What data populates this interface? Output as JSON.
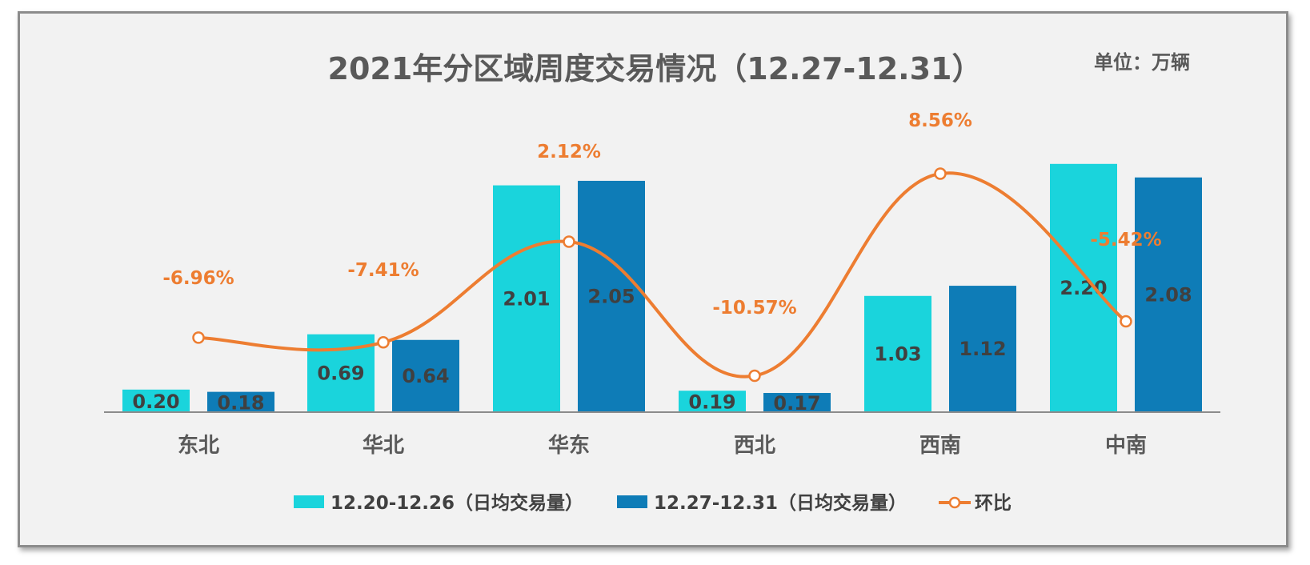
{
  "chart_data": {
    "type": "bar",
    "title": "2021年分区域周度交易情况（12.27-12.31）",
    "unit": "单位：万辆",
    "categories": [
      "东北",
      "华北",
      "华东",
      "西北",
      "西南",
      "中南"
    ],
    "series": [
      {
        "name": "12.20-12.26（日均交易量）",
        "type": "bar",
        "color": "#1ad4dc",
        "values": [
          0.2,
          0.69,
          2.01,
          0.19,
          1.03,
          2.2
        ]
      },
      {
        "name": "12.27-12.31（日均交易量）",
        "type": "bar",
        "color": "#0e7cb7",
        "values": [
          0.18,
          0.64,
          2.05,
          0.17,
          1.12,
          2.08
        ]
      },
      {
        "name": "环比",
        "type": "line",
        "color": "#ed7d31",
        "values": [
          -6.96,
          -7.41,
          2.12,
          -10.57,
          8.56,
          -5.42
        ],
        "labels": [
          "-6.96%",
          "-7.41%",
          "2.12%",
          "-10.57%",
          "8.56%",
          "-5.42%"
        ]
      }
    ],
    "bar_value_labels": [
      [
        "0.20",
        "0.69",
        "2.01",
        "0.19",
        "1.03",
        "2.20"
      ],
      [
        "0.18",
        "0.64",
        "2.05",
        "0.17",
        "1.12",
        "2.08"
      ]
    ],
    "legend_position": "bottom",
    "grid": false
  }
}
